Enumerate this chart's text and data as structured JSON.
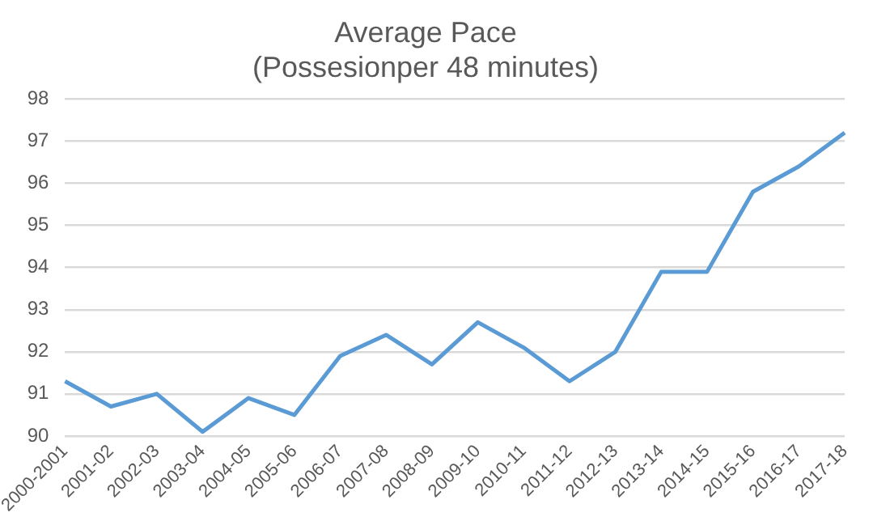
{
  "chart_data": {
    "type": "line",
    "title": [
      "Average Pace",
      "(Possesionper 48 minutes)"
    ],
    "categories": [
      "2000-2001",
      "2001-02",
      "2002-03",
      "2003-04",
      "2004-05",
      "2005-06",
      "2006-07",
      "2007-08",
      "2008-09",
      "2009-10",
      "2010-11",
      "2011-12",
      "2012-13",
      "2013-14",
      "2014-15",
      "2015-16",
      "2016-17",
      "2017-18"
    ],
    "series": [
      {
        "color": "#5b9bd5",
        "values": [
          91.3,
          90.7,
          91.0,
          90.1,
          90.9,
          90.5,
          91.9,
          92.4,
          91.7,
          92.7,
          92.1,
          91.3,
          92.0,
          93.9,
          93.9,
          95.8,
          96.4,
          97.2
        ]
      }
    ],
    "ylim": [
      90,
      98
    ],
    "yticks": [
      90,
      91,
      92,
      93,
      94,
      95,
      96,
      97,
      98
    ],
    "grid": "y",
    "legend": false,
    "marker": "none",
    "line_style": "solid"
  }
}
